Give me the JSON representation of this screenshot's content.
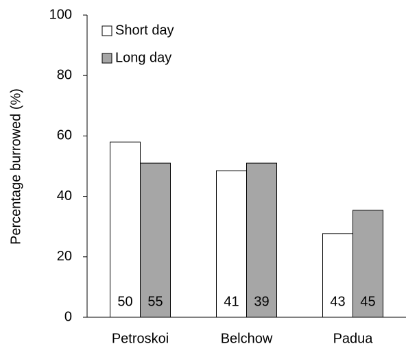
{
  "chart_data": {
    "type": "bar",
    "y_label": "Percentage burrowed (%)",
    "categories": [
      "Petroskoi",
      "Belchow",
      "Padua"
    ],
    "series": [
      {
        "name": "Short day",
        "color": "#ffffff",
        "values": [
          58,
          48.5,
          27.7
        ],
        "bar_labels": [
          50,
          41,
          43
        ]
      },
      {
        "name": "Long day",
        "color": "#a6a6a6",
        "values": [
          51,
          51,
          35.4
        ],
        "bar_labels": [
          55,
          39,
          45
        ]
      }
    ],
    "ylim": [
      0,
      100
    ],
    "yticks": [
      0,
      20,
      40,
      60,
      80,
      100
    ],
    "legend": "top-left"
  }
}
